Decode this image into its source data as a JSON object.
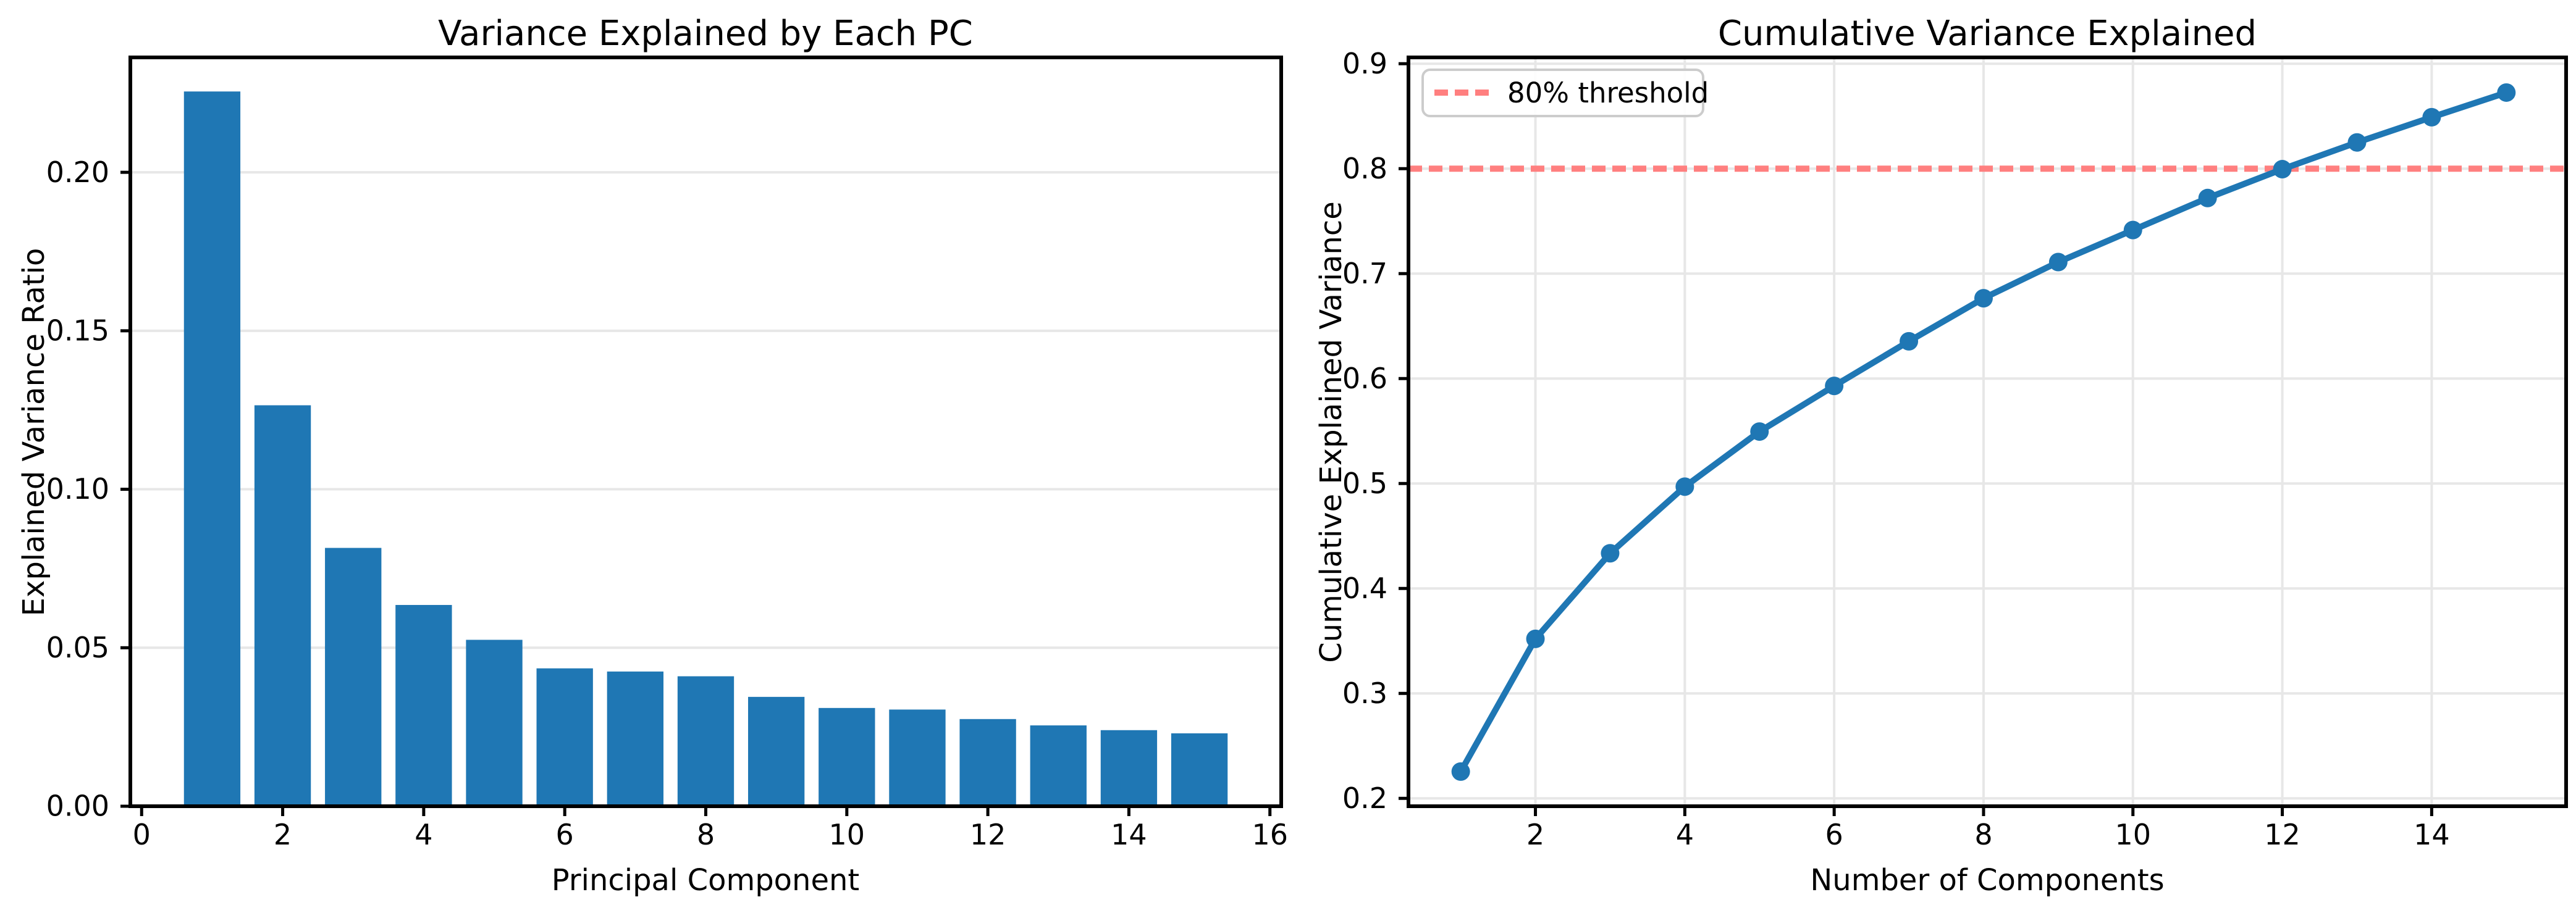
{
  "figure": {
    "background": "#ffffff"
  },
  "colors": {
    "bar": "#1f77b4",
    "line": "#1f77b4",
    "threshold": "#ff7f7f",
    "grid": "#e7e7e7",
    "spine": "#000000",
    "text": "#000000",
    "legend_border": "#cccccc",
    "legend_background": "#ffffff"
  },
  "chart_data": [
    {
      "type": "bar",
      "title": "Variance Explained by Each PC",
      "xlabel": "Principal Component",
      "ylabel": "Explained Variance Ratio",
      "categories": [
        1,
        2,
        3,
        4,
        5,
        6,
        7,
        8,
        9,
        10,
        11,
        12,
        13,
        14,
        15
      ],
      "values": [
        0.2255,
        0.1265,
        0.0815,
        0.0635,
        0.0525,
        0.0435,
        0.0425,
        0.041,
        0.0345,
        0.031,
        0.0305,
        0.0275,
        0.0255,
        0.024,
        0.023
      ],
      "bar_color": "#1f77b4",
      "bar_width": 0.8,
      "xlim": [
        -0.16,
        16.16
      ],
      "ylim": [
        0,
        0.23625
      ],
      "xticks": [
        0,
        2,
        4,
        6,
        8,
        10,
        12,
        14,
        16
      ],
      "xtick_labels": [
        "0",
        "2",
        "4",
        "6",
        "8",
        "10",
        "12",
        "14",
        "16"
      ],
      "yticks": [
        0,
        0.05,
        0.1,
        0.15,
        0.2
      ],
      "ytick_labels": [
        "0.00",
        "0.05",
        "0.10",
        "0.15",
        "0.20"
      ],
      "grid": "y",
      "legend": null
    },
    {
      "type": "line",
      "title": "Cumulative Variance Explained",
      "xlabel": "Number of Components",
      "ylabel": "Cumulative Explained Variance",
      "x": [
        1,
        2,
        3,
        4,
        5,
        6,
        7,
        8,
        9,
        10,
        11,
        12,
        13,
        14,
        15
      ],
      "values": [
        0.2255,
        0.352,
        0.4335,
        0.497,
        0.5495,
        0.593,
        0.6355,
        0.6765,
        0.711,
        0.7415,
        0.772,
        0.7995,
        0.825,
        0.849,
        0.8725
      ],
      "line_color": "#1f77b4",
      "marker": "circle",
      "threshold_line": {
        "value": 0.8,
        "label": "80% threshold",
        "color": "#ff7f7f",
        "style": "dashed"
      },
      "legend": {
        "position": "upper left",
        "entries": [
          "80% threshold"
        ]
      },
      "xlim": [
        0.3,
        15.8
      ],
      "ylim": [
        0.1925,
        0.906
      ],
      "xticks": [
        2,
        4,
        6,
        8,
        10,
        12,
        14
      ],
      "xtick_labels": [
        "2",
        "4",
        "6",
        "8",
        "10",
        "12",
        "14"
      ],
      "yticks": [
        0.2,
        0.3,
        0.4,
        0.5,
        0.6,
        0.7,
        0.8,
        0.9
      ],
      "ytick_labels": [
        "0.2",
        "0.3",
        "0.4",
        "0.5",
        "0.6",
        "0.7",
        "0.8",
        "0.9"
      ],
      "grid": "both"
    }
  ]
}
